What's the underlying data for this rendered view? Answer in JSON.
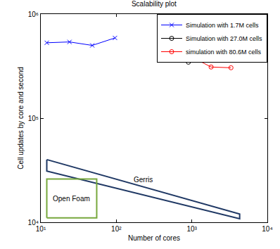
{
  "chart_data": {
    "type": "line",
    "title": "Scalability plot",
    "x_label": "Number of cores",
    "y_label": "Cell updates by core and second",
    "log": true,
    "grid": false,
    "legend": "upper right",
    "xlim": [
      10,
      10000
    ],
    "ylim": [
      10000,
      1000000
    ],
    "xticks": [
      {
        "value": 10,
        "label": "10¹"
      },
      {
        "value": 100,
        "label": "10²"
      },
      {
        "value": 1000,
        "label": "10³"
      },
      {
        "value": 10000,
        "label": "10⁴"
      }
    ],
    "yticks": [
      {
        "value": 10000,
        "label": "10⁴"
      },
      {
        "value": 100000,
        "label": "10⁵"
      },
      {
        "value": 1000000,
        "label": "10⁶"
      }
    ],
    "series": [
      {
        "name": "Simulation with 1.7M cells",
        "color": "#0000ff",
        "marker": "x",
        "line_style": "solid",
        "x": [
          12,
          24,
          48,
          96
        ],
        "values": [
          530000,
          540000,
          500000,
          590000
        ]
      },
      {
        "name": "Simulation with 27.0M cells",
        "color": "#000000",
        "marker": "circle-open",
        "line_style": "solid",
        "x": [
          900
        ],
        "values": [
          345000
        ]
      },
      {
        "name": "simulation with 80.6M cells",
        "color": "#ff0000",
        "marker": "circle-open",
        "line_style": "solid",
        "x": [
          1050,
          1800,
          3300
        ],
        "values": [
          380000,
          310000,
          305000
        ]
      }
    ],
    "regions": [
      {
        "label": "Gerris",
        "color": "#1f3864",
        "x": [
          12,
          4300,
          4300,
          12,
          12
        ],
        "y": [
          40000,
          12000,
          10800,
          31000,
          40000
        ]
      },
      {
        "label": "Open Foam",
        "color": "#77a83c",
        "x": [
          12,
          55,
          55,
          12,
          12
        ],
        "y": [
          11000,
          11000,
          26000,
          26000,
          11000
        ]
      }
    ]
  }
}
